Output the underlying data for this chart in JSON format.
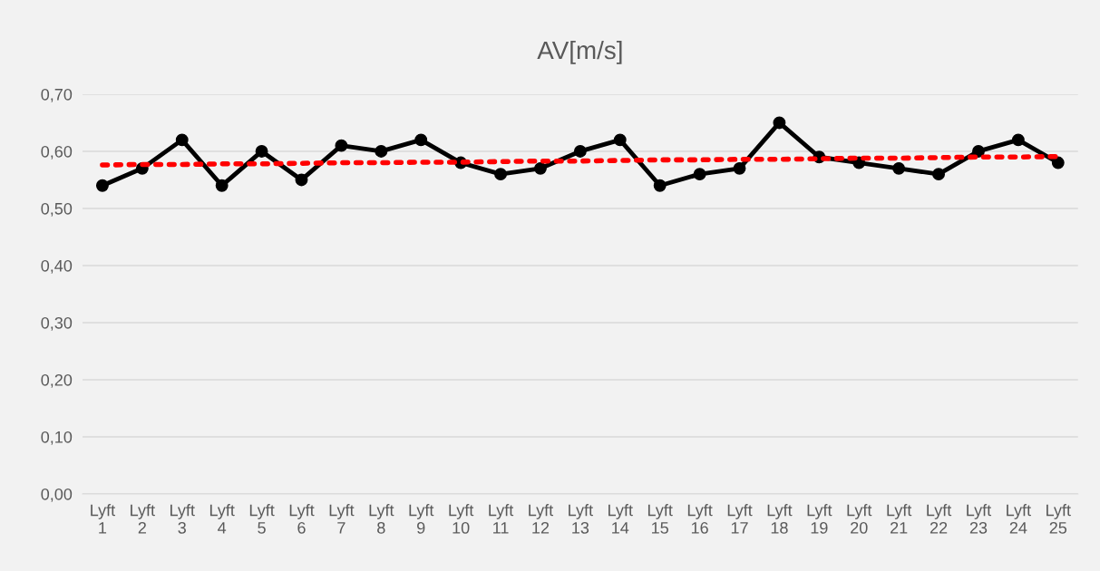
{
  "chart_data": {
    "type": "line",
    "title": "AV[m/s]",
    "categories": [
      "Lyft 1",
      "Lyft 2",
      "Lyft 3",
      "Lyft 4",
      "Lyft 5",
      "Lyft 6",
      "Lyft 7",
      "Lyft 8",
      "Lyft 9",
      "Lyft 10",
      "Lyft 11",
      "Lyft 12",
      "Lyft 13",
      "Lyft 14",
      "Lyft 15",
      "Lyft 16",
      "Lyft 17",
      "Lyft 18",
      "Lyft 19",
      "Lyft 20",
      "Lyft 21",
      "Lyft 22",
      "Lyft 23",
      "Lyft 24",
      "Lyft 25"
    ],
    "series": [
      {
        "color": "#000000",
        "marker": "circle",
        "line_style": "solid",
        "values": [
          0.54,
          0.57,
          0.62,
          0.54,
          0.6,
          0.55,
          0.61,
          0.6,
          0.62,
          0.58,
          0.56,
          0.57,
          0.6,
          0.62,
          0.54,
          0.56,
          0.57,
          0.65,
          0.59,
          0.58,
          0.57,
          0.56,
          0.6,
          0.62,
          0.58
        ]
      },
      {
        "color": "#ff0000",
        "marker": "none",
        "line_style": "dotted",
        "values": [
          0.576,
          0.577,
          0.577,
          0.578,
          0.578,
          0.579,
          0.58,
          0.58,
          0.581,
          0.581,
          0.582,
          0.583,
          0.583,
          0.584,
          0.585,
          0.585,
          0.586,
          0.586,
          0.587,
          0.588,
          0.588,
          0.589,
          0.59,
          0.59,
          0.591
        ]
      }
    ],
    "ylim": [
      0,
      0.7
    ],
    "yticks": [
      {
        "value": 0,
        "label": "0,00"
      },
      {
        "value": 0.1,
        "label": "0,10"
      },
      {
        "value": 0.2,
        "label": "0,20"
      },
      {
        "value": 0.3,
        "label": "0,30"
      },
      {
        "value": 0.4,
        "label": "0,40"
      },
      {
        "value": 0.5,
        "label": "0,50"
      },
      {
        "value": 0.6,
        "label": "0,60"
      },
      {
        "value": 0.7,
        "label": "0,70"
      }
    ],
    "grid": "y"
  }
}
